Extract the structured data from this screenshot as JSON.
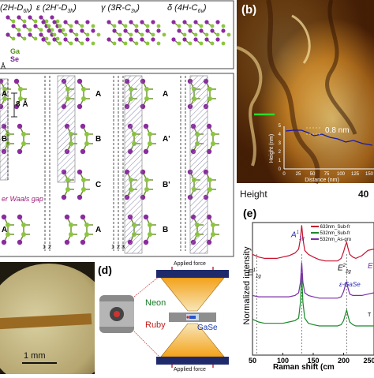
{
  "panel_a": {
    "phase_labels": [
      "(2H-D",
      "ε (2H'-D",
      "γ (3R-C",
      "δ (4H-C"
    ],
    "phase_subs": [
      "6h",
      "3h",
      "3v",
      "6v"
    ],
    "legend_ga": "Ga",
    "legend_se": "Se",
    "angstrom": "Å",
    "layer_spacing": "8 Å",
    "col1_layers": [
      "A",
      "B",
      "A"
    ],
    "col3_layers": [
      "A",
      "B",
      "C",
      "A"
    ],
    "col4_layers": [
      "A",
      "A'",
      "B'",
      "B"
    ],
    "gap_label": "er Waals gap",
    "col2_marks": [
      "1",
      "2"
    ],
    "col3_marks": [
      "1",
      "2",
      "3"
    ]
  },
  "panel_b": {
    "tag": "(b)",
    "step_label": "0.8 nm",
    "inset_ylabel": "Height (nm)",
    "inset_xlabel": "Distance (nm)",
    "inset_yticks": [
      "0",
      "1",
      "2",
      "3",
      "4",
      "5"
    ],
    "inset_xticks": [
      "0",
      "25",
      "50",
      "75",
      "100",
      "125",
      "150"
    ],
    "footer_left": "Height",
    "footer_right": "40"
  },
  "panel_c": {
    "scale_bar": "1 mm"
  },
  "panel_d": {
    "tag": "(d)",
    "top_force": "Applied force",
    "bottom_force": "Applied force",
    "neon": "Neon",
    "ruby": "Ruby",
    "gase": "GaSe"
  },
  "panel_e": {
    "tag": "(e)",
    "ylabel": "Normalized intensity",
    "xlabel": "Raman shift (cm",
    "legend": [
      "633nm_Sub-fr",
      "532nm_Sub-fr",
      "532nm_As-gro"
    ],
    "peak_labels": [
      "E",
      "A",
      "E",
      "E"
    ],
    "gase_label": "ε-GaSe",
    "tc_label": "T"
  },
  "chart_data": {
    "type": "line",
    "xlabel": "Raman shift (cm",
    "ylabel": "Normalized intensity",
    "xlim": [
      50,
      250
    ],
    "xticks": [
      50,
      100,
      150,
      200,
      250
    ],
    "series": [
      {
        "name": "633nm_Sub-fr",
        "color": "#c8102e",
        "x": [
          50,
          60,
          70,
          80,
          90,
          100,
          110,
          120,
          126,
          129,
          131,
          133,
          136,
          142,
          150,
          160,
          170,
          180,
          190,
          196,
          200,
          203,
          205,
          207,
          210,
          215,
          220,
          230,
          240,
          250
        ],
        "y": [
          0.76,
          0.74,
          0.73,
          0.73,
          0.73,
          0.74,
          0.75,
          0.77,
          0.8,
          0.88,
          0.98,
          0.88,
          0.79,
          0.76,
          0.74,
          0.72,
          0.71,
          0.71,
          0.71,
          0.73,
          0.78,
          0.83,
          0.85,
          0.81,
          0.76,
          0.74,
          0.73,
          0.75,
          0.79,
          0.8
        ]
      },
      {
        "name": "532nm_Sub-fr",
        "color": "#1a8a2a",
        "x": [
          50,
          60,
          70,
          80,
          90,
          100,
          110,
          120,
          126,
          129,
          131,
          133,
          136,
          142,
          150,
          160,
          170,
          180,
          190,
          196,
          200,
          203,
          205,
          207,
          210,
          215,
          220,
          230,
          240,
          250
        ],
        "y": [
          0.27,
          0.25,
          0.24,
          0.24,
          0.24,
          0.24,
          0.25,
          0.26,
          0.28,
          0.4,
          0.62,
          0.4,
          0.28,
          0.24,
          0.23,
          0.22,
          0.22,
          0.22,
          0.22,
          0.23,
          0.26,
          0.31,
          0.34,
          0.3,
          0.25,
          0.23,
          0.22,
          0.22,
          0.22,
          0.22
        ]
      },
      {
        "name": "532nm_As-gro",
        "color": "#7b2fa8",
        "x": [
          50,
          60,
          70,
          80,
          90,
          100,
          110,
          120,
          126,
          129,
          131,
          133,
          136,
          142,
          150,
          160,
          170,
          180,
          190,
          196,
          200,
          203,
          205,
          207,
          210,
          215,
          220,
          230,
          240,
          250
        ],
        "y": [
          0.45,
          0.44,
          0.44,
          0.44,
          0.44,
          0.44,
          0.44,
          0.45,
          0.47,
          0.55,
          0.7,
          0.55,
          0.47,
          0.45,
          0.44,
          0.43,
          0.43,
          0.43,
          0.43,
          0.44,
          0.48,
          0.53,
          0.55,
          0.51,
          0.46,
          0.45,
          0.45,
          0.45,
          0.46,
          0.47
        ]
      }
    ]
  },
  "colors": {
    "ga": "#8cc63f",
    "se": "#8a2b9e",
    "bond": "#6a8f2a",
    "gap": "#b0b0c8"
  }
}
